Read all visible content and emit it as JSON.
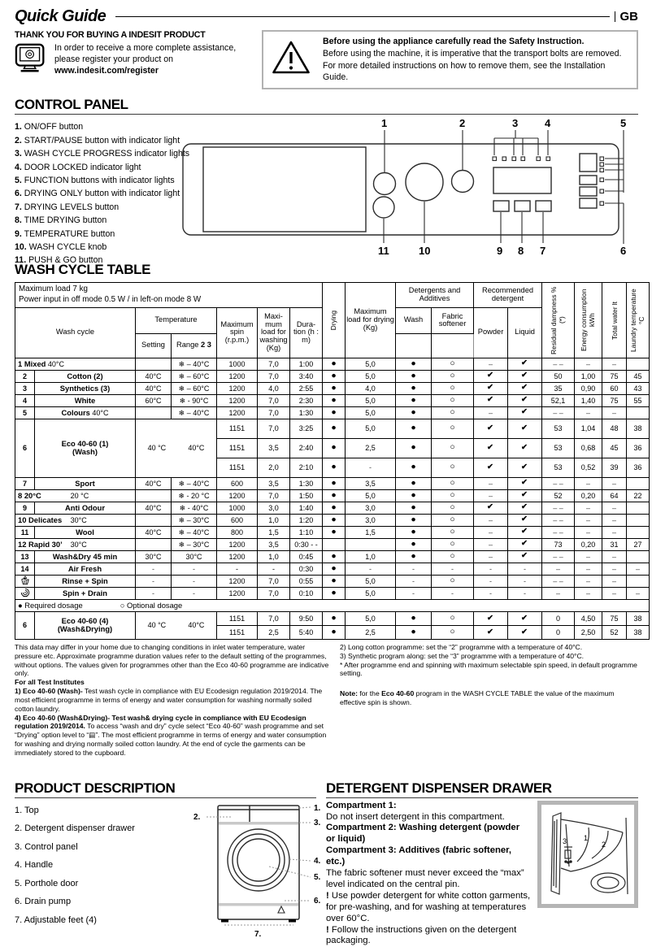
{
  "page": {
    "title": "Quick Guide",
    "lang_badge": "GB"
  },
  "intro": {
    "thanks_heading": "THANK YOU FOR BUYING A INDESIT PRODUCT",
    "lines": [
      [
        {
          "t": "In order to receive a more complete assistance,"
        }
      ],
      [
        {
          "t": "please register your product on"
        }
      ],
      [
        {
          "b": 1,
          "t": "www.indesit.com/register"
        }
      ]
    ]
  },
  "safety": {
    "line1": "Before using the appliance carefully read the Safety Instruction.",
    "line2": "Before using the machine, it is imperative that the transport bolts are removed.",
    "line3": "For more detailed instructions on how to remove them, see the Installation Guide."
  },
  "control_panel": {
    "heading": "CONTROL PANEL",
    "items": [
      "ON/OFF button",
      "START/PAUSE button with indicator light",
      "WASH CYCLE PROGRESS indicator lights",
      "DOOR LOCKED indicator light",
      "FUNCTION buttons with indicator lights",
      "DRYING ONLY button with indicator light",
      "DRYING LEVELS button",
      "TIME DRYING button",
      "TEMPERATURE button",
      "WASH CYCLE knob",
      "PUSH & GO button"
    ],
    "callouts": [
      "1",
      "2",
      "3",
      "4",
      "5",
      "6",
      "7",
      "8",
      "9",
      "10",
      "11"
    ]
  },
  "wash_table": {
    "heading": "WASH CYCLE TABLE",
    "headers": {
      "info1": "Maximum load 7 kg",
      "info2": "Power input in off  mode 0.5 W / in left-on mode 8 W",
      "wash_cycle": "Wash cycle",
      "temperature": "Temperature",
      "setting": "Setting",
      "range_label": "Range ",
      "range_bold": "2 3",
      "spin": "Maximum spin (r.p.m.)",
      "load": "Maxi-mum load for washing (Kg)",
      "dur": "Dura-tion (h : m)",
      "drying": "Drying",
      "dryload": "Maximum load for drying (Kg)",
      "det_add": "Detergents and Additives",
      "wash": "Wash",
      "fs": "Fabric softener",
      "rec_det": "Recommended detergent",
      "powder": "Powder",
      "liquid": "Liquid",
      "resid": "Residual dampness % (*)",
      "energy": "Energy consumption kWh",
      "water": "Total water lt",
      "ltemp": "Laundry temperature °C"
    },
    "rows": [
      {
        "n": "1",
        "name": "Mixed",
        "temp": "40°C",
        "mode": "left",
        "set": "",
        "rng": "❄ – 40°C",
        "spin": "1000",
        "load": "7,0",
        "dur": "1:00",
        "dry": "●",
        "dload": "5,0",
        "det": [
          "●",
          "○",
          "–",
          "✔"
        ],
        "out": [
          "– –",
          "–",
          "–",
          ""
        ]
      },
      {
        "n": "2",
        "name": "Cotton (2)",
        "temp": "",
        "mode": "center",
        "set": "40°C",
        "rng": "❄ – 60°C",
        "spin": "1200",
        "load": "7,0",
        "dur": "3:40",
        "dry": "●",
        "dload": "5,0",
        "det": [
          "●",
          "○",
          "✔",
          "✔"
        ],
        "out": [
          "50",
          "1,00",
          "75",
          "45"
        ]
      },
      {
        "n": "3",
        "name": "Synthetics (3)",
        "temp": "",
        "mode": "center",
        "set": "40°C",
        "rng": "❄ – 60°C",
        "spin": "1200",
        "load": "4,0",
        "dur": "2:55",
        "dry": "●",
        "dload": "4,0",
        "det": [
          "●",
          "○",
          "✔",
          "✔"
        ],
        "out": [
          "35",
          "0,90",
          "60",
          "43"
        ]
      },
      {
        "n": "4",
        "name": "White",
        "temp": "",
        "mode": "center",
        "set": "60°C",
        "rng": "❄ - 90°C",
        "spin": "1200",
        "load": "7,0",
        "dur": "2:30",
        "dry": "●",
        "dload": "5,0",
        "det": [
          "●",
          "○",
          "✔",
          "✔"
        ],
        "out": [
          "52,1",
          "1,40",
          "75",
          "55"
        ]
      },
      {
        "n": "5",
        "name": "Colours",
        "temp": "40°C",
        "mode": "center",
        "set": "",
        "rng": "❄ – 40°C",
        "spin": "1200",
        "load": "7,0",
        "dur": "1:30",
        "dry": "●",
        "dload": "5,0",
        "det": [
          "●",
          "○",
          "–",
          "✔"
        ],
        "out": [
          "– –",
          "–",
          "–",
          ""
        ]
      },
      {
        "eco": "eco_wash"
      },
      {
        "n": "7",
        "name": "Sport",
        "temp": "",
        "mode": "center",
        "set": "40°C",
        "rng": "❄ – 40°C",
        "spin": "600",
        "load": "3,5",
        "dur": "1:30",
        "dry": "●",
        "dload": "3,5",
        "det": [
          "●",
          "○",
          "–",
          "✔"
        ],
        "out": [
          "– –",
          "–",
          "–",
          ""
        ]
      },
      {
        "n": "8",
        "name": "20°C",
        "temp": "20 °C",
        "mode": "spread",
        "set": "",
        "rng": "❄ - 20 °C",
        "spin": "1200",
        "load": "7,0",
        "dur": "1:50",
        "dry": "●",
        "dload": "5,0",
        "det": [
          "●",
          "○",
          "–",
          "✔"
        ],
        "out": [
          "52",
          "0,20",
          "64",
          "22"
        ]
      },
      {
        "n": "9",
        "name": "Anti Odour",
        "temp": "",
        "mode": "center",
        "set": "40°C",
        "rng": "❄ - 40°C",
        "spin": "1000",
        "load": "3,0",
        "dur": "1:40",
        "dry": "●",
        "dload": "3,0",
        "det": [
          "●",
          "○",
          "✔",
          "✔"
        ],
        "out": [
          "– –",
          "–",
          "–",
          ""
        ]
      },
      {
        "n": "10",
        "name": "Delicates",
        "temp": "30°C",
        "mode": "spread",
        "set": "",
        "rng": "❄ – 30°C",
        "spin": "600",
        "load": "1,0",
        "dur": "1:20",
        "dry": "●",
        "dload": "3,0",
        "det": [
          "●",
          "○",
          "–",
          "✔"
        ],
        "out": [
          "– –",
          "–",
          "–",
          ""
        ]
      },
      {
        "n": "11",
        "name": "Wool",
        "temp": "",
        "mode": "center",
        "set": "40°C",
        "rng": "❄ – 40°C",
        "spin": "800",
        "load": "1,5",
        "dur": "1:10",
        "dry": "●",
        "dload": "1,5",
        "det": [
          "●",
          "○",
          "–",
          "✔"
        ],
        "out": [
          "– –",
          "–",
          "–",
          ""
        ]
      },
      {
        "n": "12",
        "name": "Rapid 30’",
        "temp": "30°C",
        "mode": "spread",
        "set": "",
        "rng": "❄ – 30°C",
        "spin": "1200",
        "load": "3,5",
        "dur": "0:30 - -",
        "dry": "",
        "dload": "",
        "det": [
          "●",
          "○",
          "–",
          "✔"
        ],
        "out": [
          "73",
          "0,20",
          "31",
          "27"
        ]
      },
      {
        "n": "13",
        "name": "Wash&Dry 45 min",
        "temp": "",
        "mode": "center",
        "set": "30°C",
        "rng": "30°C",
        "spin": "1200",
        "load": "1,0",
        "dur": "0:45",
        "dry": "●",
        "dload": "1,0",
        "det": [
          "●",
          "○",
          "–",
          "✔"
        ],
        "out": [
          "– –",
          "–",
          "–",
          ""
        ]
      },
      {
        "n": "14",
        "name": "Air Fresh",
        "temp": "",
        "mode": "center",
        "set": "-",
        "rng": "-",
        "spin": "-",
        "load": "-",
        "dur": "0:30",
        "dry": "●",
        "dload": "-",
        "det": [
          "-",
          "-",
          "-",
          "-"
        ],
        "out": [
          "–",
          "–",
          "–",
          "–"
        ]
      },
      {
        "icon": "rinse-icon",
        "name": "Rinse + Spin",
        "temp": "",
        "mode": "center",
        "set": "-",
        "rng": "-",
        "spin": "1200",
        "load": "7,0",
        "dur": "0:55",
        "dry": "●",
        "dload": "5,0",
        "det": [
          "-",
          "○",
          "-",
          "-"
        ],
        "out": [
          "– –",
          "–",
          "–",
          ""
        ]
      },
      {
        "icon": "spin-icon",
        "name": "Spin + Drain",
        "temp": "",
        "mode": "center",
        "set": "-",
        "rng": "-",
        "spin": "1200",
        "load": "7,0",
        "dur": "0:10",
        "dry": "●",
        "dload": "5,0",
        "det": [
          "-",
          "-",
          "-",
          "-"
        ],
        "out": [
          "–",
          "–",
          "–",
          "–"
        ]
      }
    ],
    "eco_wash": {
      "n": "6",
      "name": "Eco 40-60 (1)",
      "name2": "(Wash)",
      "t1": "40 °C",
      "t2": "40°C",
      "subrows": [
        {
          "spin": "1151",
          "load": "7,0",
          "dur": "3:25",
          "dry": "●",
          "dload": "5,0",
          "det": [
            "●",
            "○",
            "✔",
            "✔"
          ],
          "out": [
            "53",
            "1,04",
            "48",
            "38"
          ]
        },
        {
          "spin": "1151",
          "load": "3,5",
          "dur": "2:40",
          "dry": "●",
          "dload": "2,5",
          "det": [
            "●",
            "○",
            "✔",
            "✔"
          ],
          "out": [
            "53",
            "0,68",
            "45",
            "36"
          ]
        },
        {
          "spin": "1151",
          "load": "2,0",
          "dur": "2:10",
          "dry": "●",
          "dload": "-",
          "det": [
            "●",
            "○",
            "✔",
            "✔"
          ],
          "out": [
            "53",
            "0,52",
            "39",
            "36"
          ]
        }
      ]
    },
    "legend": {
      "req": "● Required dosage",
      "opt": "○ Optional dosage"
    },
    "eco_washdry": {
      "n": "6",
      "name": "Eco 40-60 (4)",
      "name2": "(Wash&Drying)",
      "t1": "40 °C",
      "t2": "40°C",
      "subrows": [
        {
          "spin": "1151",
          "load": "7,0",
          "dur": "9:50",
          "dry": "●",
          "dload": "5,0",
          "det": [
            "●",
            "○",
            "✔",
            "✔"
          ],
          "out": [
            "0",
            "4,50",
            "75",
            "38"
          ]
        },
        {
          "spin": "1151",
          "load": "2,5",
          "dur": "5:40",
          "dry": "●",
          "dload": "2,5",
          "det": [
            "●",
            "○",
            "✔",
            "✔"
          ],
          "out": [
            "0",
            "2,50",
            "52",
            "38"
          ]
        }
      ]
    }
  },
  "footnotes": {
    "left": [
      [
        {
          "t": "This data may differ in your home due to changing conditions in inlet water temperature, water pressure etc. Approximate programme duration values refer to the default setting of the programmes, without options. The values given for programmes other than the Eco 40-60 programme are indicative only."
        }
      ],
      [
        {
          "b": 1,
          "t": "For all Test Institutes"
        }
      ],
      [
        {
          "b": 1,
          "t": "1) Eco 40-60 (Wash)-"
        },
        {
          "t": " Test wash cycle in compliance with EU Ecodesign regulation 2019/2014. The most efficient programme in terms of energy and water consumption for washing normally soiled cotton laundry."
        }
      ],
      [
        {
          "b": 1,
          "t": "4) Eco 40-60 (Wash&Drying)-  Test wash& drying cycle in compliance with EU Ecodesign regulation 2019/2014."
        },
        {
          "t": " To access “wash and dry” cycle select  “Eco 40-60” wash programme and set “Drying” option level to “▤”. The most efficient programme in terms of energy and water consumption for washing and drying normally soiled cotton laundry. At the end of cycle the garments can be immediately stored to the cupboard."
        }
      ]
    ],
    "right": [
      [
        {
          "t": "2)  Long cotton programme: set the “2” programme with a temperature of 40°C."
        }
      ],
      [
        {
          "t": "3)  Synthetic program along: set the “3” programme with a temperature of 40°C."
        }
      ],
      [
        {
          "t": "*  After programme end and spinning with maximum selectable spin speed, in default programme setting."
        }
      ],
      [
        {
          "b": 1,
          "t": "Note:"
        },
        {
          "t": " for the "
        },
        {
          "b": 1,
          "t": "Eco 40-60"
        },
        {
          "t": " program in the WASH CYCLE TABLE the value of the maximum effective spin is shown."
        }
      ]
    ]
  },
  "product": {
    "heading": "PRODUCT DESCRIPTION",
    "items": [
      "1. Top",
      "2. Detergent dispenser drawer",
      "3. Control panel",
      "4. Handle",
      "5. Porthole door",
      "6. Drain pump",
      "7. Adjustable feet (4)"
    ],
    "callouts": [
      "1.",
      "2.",
      "3.",
      "4.",
      "5.",
      "6.",
      "7."
    ]
  },
  "dispenser": {
    "heading": "DETERGENT DISPENSER DRAWER",
    "paragraphs": [
      [
        {
          "b": 1,
          "t": "Compartment 1:"
        }
      ],
      [
        {
          "t": "Do not insert detergent in this compartment."
        }
      ],
      [
        {
          "b": 1,
          "t": "Compartment 2: Washing detergent (powder or liquid)"
        }
      ],
      [
        {
          "b": 1,
          "t": "Compartment 3: Additives (fabric softener, etc.)"
        }
      ],
      [
        {
          "t": "The fabric softener must never exceed the “max” level indicated on the central pin."
        }
      ],
      [
        {
          "b": 1,
          "t": "!"
        },
        {
          "t": " Use powder detergent for white cotton garments, for pre-washing, and for washing at temperatures over 60°C."
        }
      ],
      [
        {
          "b": 1,
          "t": "!"
        },
        {
          "t": " Follow the instructions given on the detergent packaging."
        }
      ]
    ],
    "numbers": [
      "1",
      "2",
      "3"
    ]
  }
}
